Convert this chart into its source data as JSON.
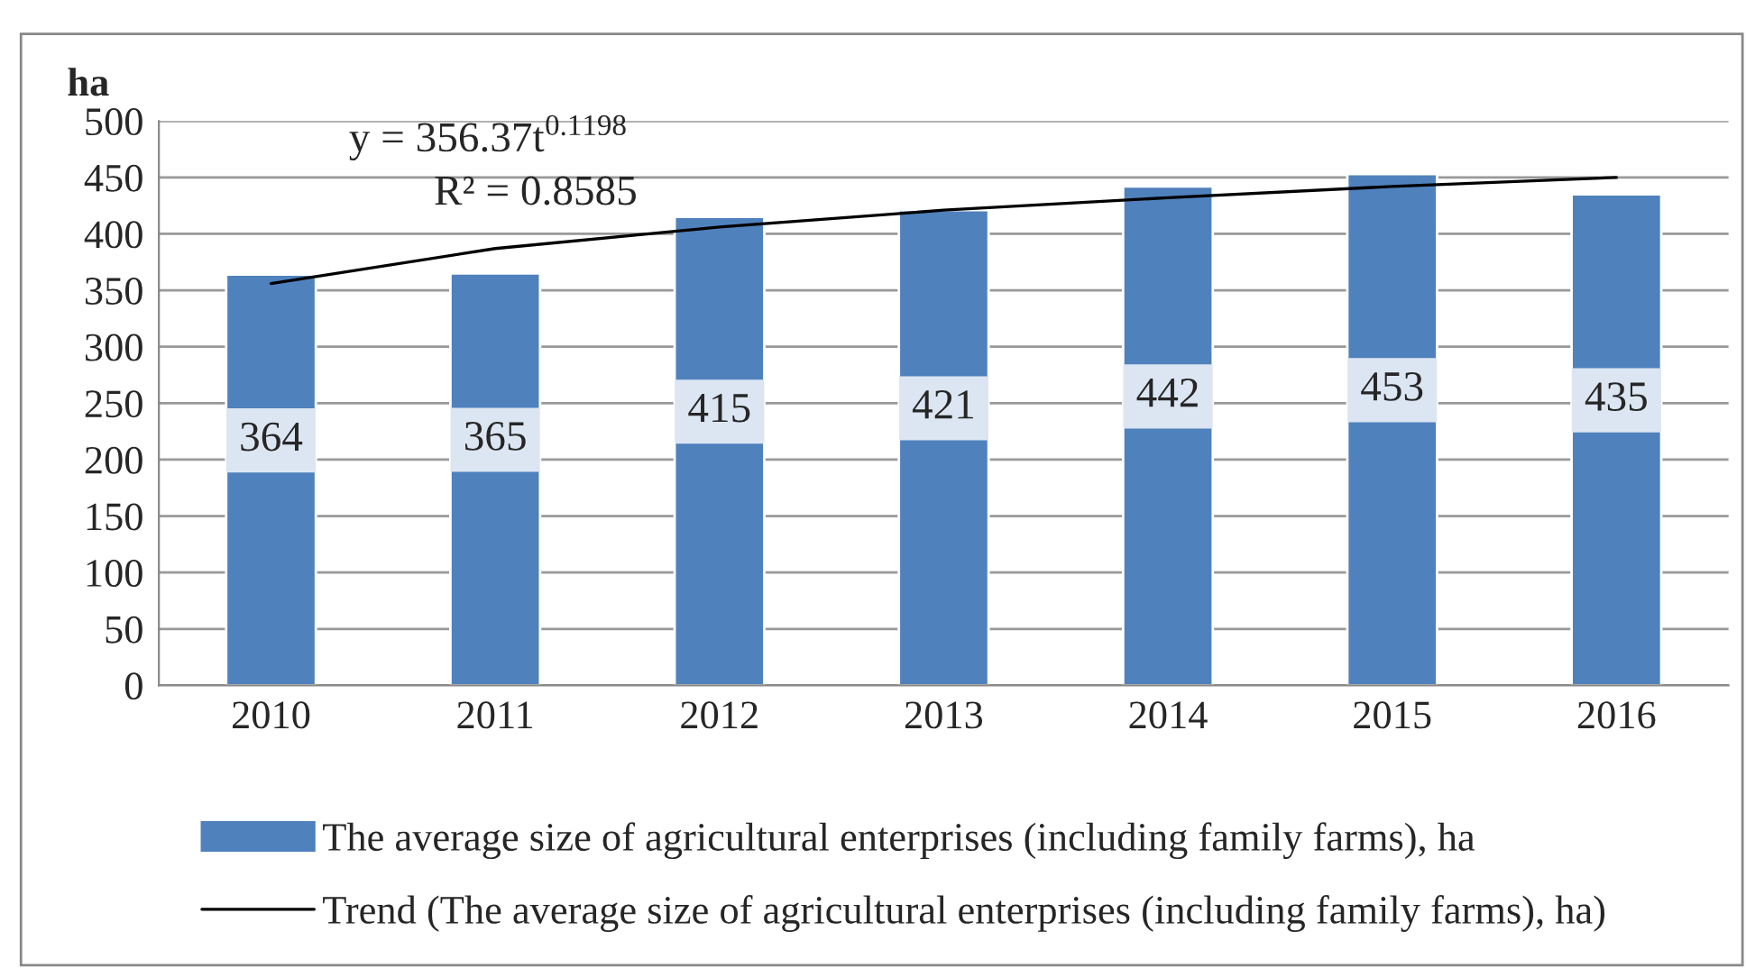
{
  "chart_data": {
    "type": "bar",
    "ylabel": "ha",
    "categories": [
      "2010",
      "2011",
      "2012",
      "2013",
      "2014",
      "2015",
      "2016"
    ],
    "series": [
      {
        "name": "The average size of agricultural enterprises (including family farms), ha",
        "color": "#4f81bd",
        "values": [
          364,
          365,
          415,
          421,
          442,
          453,
          435
        ],
        "value_labels": [
          "364",
          "365",
          "415",
          "421",
          "442",
          "453",
          "435"
        ]
      },
      {
        "name": "Trend (The average size of agricultural enterprises (including family farms), ha)",
        "type": "line",
        "color": "#000000",
        "values": [
          356,
          387,
          406,
          421,
          432,
          442,
          450
        ]
      }
    ],
    "ylim": [
      0,
      500
    ],
    "yticks": [
      0,
      50,
      100,
      150,
      200,
      250,
      300,
      350,
      400,
      450,
      500
    ],
    "grid": "y",
    "legend": "bottom",
    "annotations": [
      "y = 356.37t$^{0.1198}$",
      "R² = 0.8585"
    ]
  }
}
